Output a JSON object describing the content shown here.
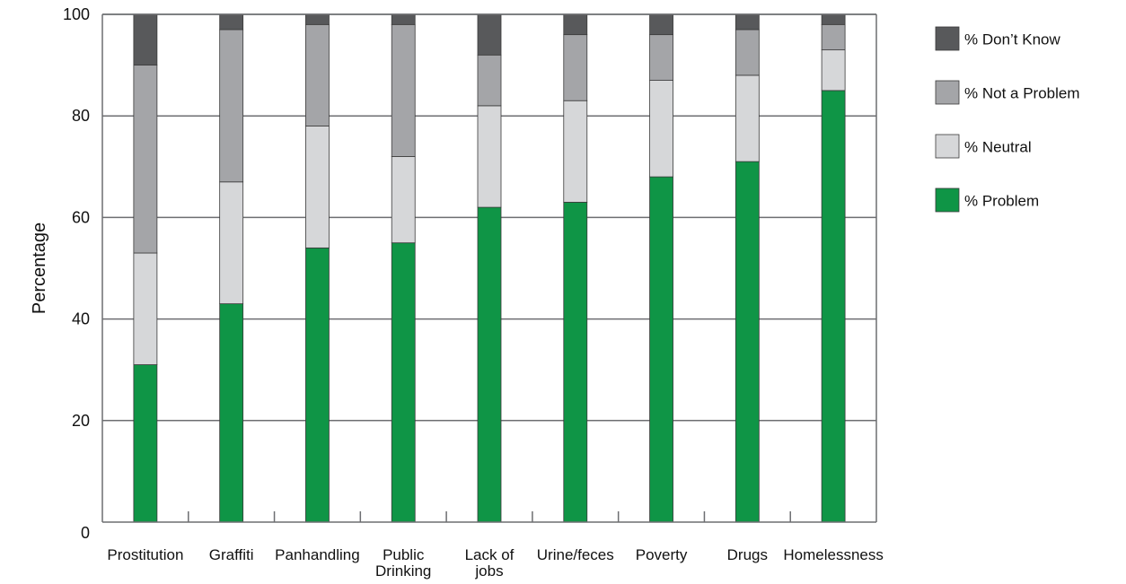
{
  "chart_data": {
    "type": "bar",
    "stacked": true,
    "title": "",
    "xlabel": "",
    "ylabel": "Percentage",
    "ylim": [
      0,
      100
    ],
    "yticks": [
      0,
      20,
      40,
      60,
      80,
      100
    ],
    "grid": true,
    "legend_position": "right",
    "categories": [
      [
        "Prostitution"
      ],
      [
        "Graffiti"
      ],
      [
        "Panhandling"
      ],
      [
        "Public",
        "Drinking"
      ],
      [
        "Lack of",
        "jobs"
      ],
      [
        "Urine/feces"
      ],
      [
        "Poverty"
      ],
      [
        "Drugs"
      ],
      [
        "Homelessness"
      ]
    ],
    "series": [
      {
        "name": "% Problem",
        "color": "#0f9546",
        "values": [
          31,
          43,
          54,
          55,
          62,
          63,
          68,
          71,
          85
        ]
      },
      {
        "name": "% Neutral",
        "color": "#d6d7d9",
        "values": [
          22,
          24,
          24,
          17,
          20,
          20,
          19,
          17,
          8
        ]
      },
      {
        "name": "% Not a Problem",
        "color": "#a4a5a8",
        "values": [
          37,
          30,
          20,
          26,
          10,
          13,
          9,
          9,
          5
        ]
      },
      {
        "name": "% Don’t Know",
        "color": "#58595b",
        "values": [
          10,
          3,
          2,
          2,
          8,
          4,
          4,
          3,
          2
        ]
      }
    ],
    "legend_order": [
      "% Don’t Know",
      "% Not a Problem",
      "% Neutral",
      "% Problem"
    ]
  }
}
